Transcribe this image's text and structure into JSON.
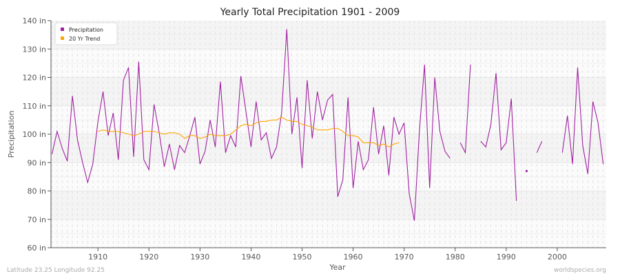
{
  "chart_data": {
    "type": "line",
    "title": "Yearly Total Precipitation 1901 - 2009",
    "xlabel": "Year",
    "ylabel": "Precipitation",
    "xlim": [
      1901,
      2009
    ],
    "ylim": [
      60,
      140
    ],
    "x_ticks": [
      1910,
      1920,
      1930,
      1940,
      1950,
      1960,
      1970,
      1980,
      1990,
      2000
    ],
    "y_ticks": [
      60,
      70,
      80,
      90,
      100,
      110,
      120,
      130,
      140
    ],
    "y_tick_labels": [
      "60 in",
      "70 in",
      "80 in",
      "90 in",
      "100 in",
      "110 in",
      "120 in",
      "130 in",
      "140 in"
    ],
    "grid": true,
    "legend_position": "top-left",
    "series": [
      {
        "name": "Precipitation",
        "color": "#a020a0",
        "start_year": 1901,
        "values": [
          93,
          101,
          95,
          90.5,
          113.5,
          98,
          90,
          83,
          89.5,
          104.5,
          115,
          99.5,
          107.5,
          91,
          119,
          123.5,
          92,
          125.5,
          91,
          87.5,
          110.5,
          100.5,
          88.5,
          96.5,
          87.5,
          96,
          93.5,
          99.5,
          106,
          89.5,
          94,
          105,
          95.5,
          118.5,
          93.5,
          99.5,
          95.5,
          120.5,
          108,
          95.5,
          111.5,
          98,
          100.5,
          91.5,
          95.5,
          107.5,
          137,
          100,
          113,
          88,
          119,
          98.5,
          115,
          105,
          112,
          114,
          78,
          84,
          113,
          81,
          97.5,
          87.5,
          91,
          109.5,
          93,
          103,
          85.5,
          106,
          100,
          104,
          79,
          69.5,
          101.5,
          124.5,
          81,
          120,
          101,
          94,
          91.5,
          null,
          97,
          93.5,
          124.5,
          null,
          97.5,
          95.5,
          103.5,
          121.5,
          94.5,
          97,
          112.5,
          76.5,
          null,
          87,
          null,
          93.5,
          97.5,
          null,
          null,
          null,
          93.5,
          106.5,
          89.5,
          123.5,
          96,
          86,
          111.5,
          104,
          89.5
        ]
      },
      {
        "name": "20 Yr Trend",
        "color": "#ffa500",
        "start_year": 1910,
        "values": [
          101,
          101.5,
          101,
          101,
          101,
          100.5,
          100,
          99.5,
          100,
          101,
          101,
          101,
          100.5,
          100,
          100.5,
          100.5,
          100,
          98.5,
          99.5,
          99.5,
          98.5,
          99,
          100,
          99.5,
          99.5,
          99.5,
          100,
          101.5,
          103,
          103.5,
          103,
          104,
          104.5,
          104.5,
          105,
          105,
          106,
          105,
          104.5,
          104.5,
          103.5,
          103,
          102.5,
          101.5,
          101.5,
          101.5,
          102,
          102,
          101,
          99.5,
          99.5,
          99,
          97,
          97,
          97,
          96,
          96.5,
          95.5,
          96.5,
          97
        ]
      }
    ]
  },
  "footer": {
    "location": "Latitude 23.25 Longitude 92.25",
    "credit": "worldspecies.org"
  }
}
